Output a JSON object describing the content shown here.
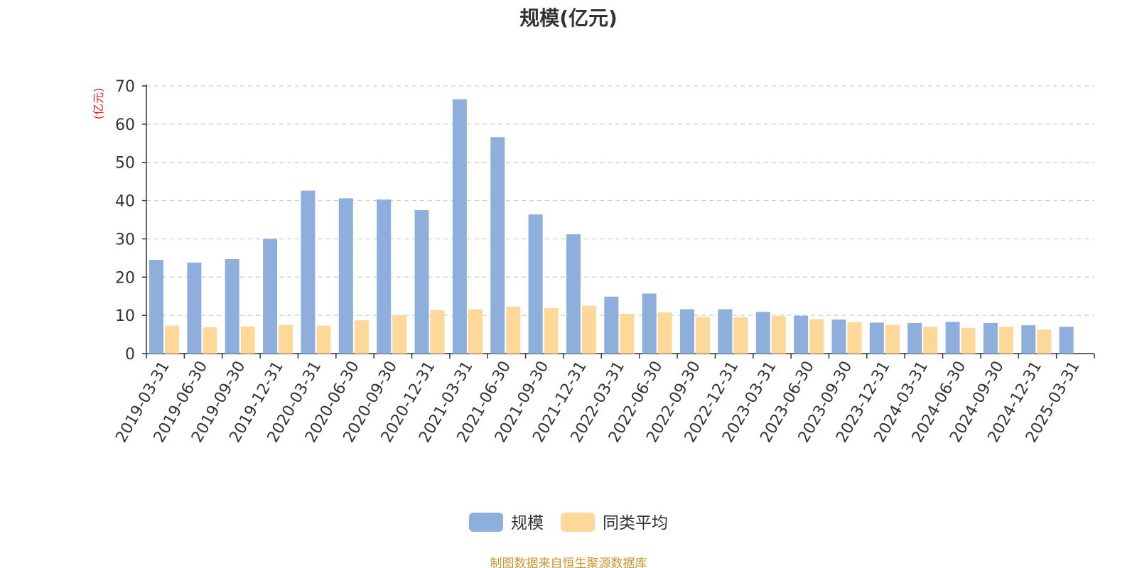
{
  "chart_data": {
    "type": "bar",
    "title": "规模(亿元)",
    "ylabel": "(亿元)",
    "ylim": [
      0,
      70
    ],
    "yticks": [
      0,
      10,
      20,
      30,
      40,
      50,
      60,
      70
    ],
    "grid": true,
    "legend_position": "bottom-center",
    "categories": [
      "2019-03-31",
      "2019-06-30",
      "2019-09-30",
      "2019-12-31",
      "2020-03-31",
      "2020-06-30",
      "2020-09-30",
      "2020-12-31",
      "2021-03-31",
      "2021-06-30",
      "2021-09-30",
      "2021-12-31",
      "2022-03-31",
      "2022-06-30",
      "2022-09-30",
      "2022-12-31",
      "2023-03-31",
      "2023-06-30",
      "2023-09-30",
      "2023-12-31",
      "2024-03-31",
      "2024-06-30",
      "2024-09-30",
      "2024-12-31",
      "2025-03-31"
    ],
    "series": [
      {
        "name": "规模",
        "color": "#8eaedc",
        "values": [
          24.5,
          23.8,
          24.7,
          30.0,
          42.6,
          40.6,
          40.3,
          37.5,
          66.5,
          56.6,
          36.4,
          31.2,
          14.9,
          15.7,
          11.6,
          11.6,
          10.9,
          9.9,
          8.9,
          8.1,
          8.0,
          8.3,
          8.0,
          7.4,
          7.0
        ]
      },
      {
        "name": "同类平均",
        "color": "#fdd898",
        "values": [
          7.3,
          6.9,
          7.1,
          7.5,
          7.3,
          8.7,
          10.0,
          11.4,
          11.6,
          12.3,
          11.9,
          12.5,
          10.4,
          10.8,
          9.6,
          9.5,
          9.8,
          9.0,
          8.2,
          7.5,
          7.0,
          6.7,
          7.0,
          6.3,
          null
        ]
      }
    ]
  },
  "source_note": "制图数据来自恒生聚源数据库"
}
